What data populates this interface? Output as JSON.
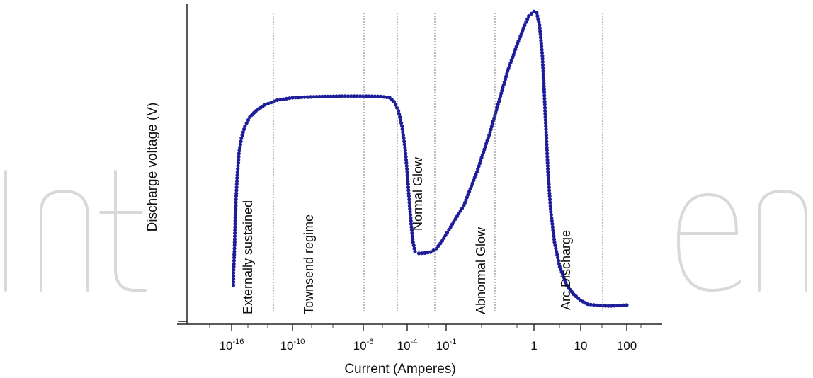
{
  "watermark": {
    "text": "IntechOpen"
  },
  "chart_data": {
    "type": "scatter",
    "title": "",
    "xlabel": "Current  (Amperes)",
    "ylabel": "Discharge voltage (V)",
    "x_scale": "log-like (non-uniform)",
    "y_units": "relative (unlabelled)",
    "ylim": [
      0,
      100
    ],
    "grid": false,
    "legend": "none",
    "marker_color": "#1d1d9a",
    "x_ticks": [
      {
        "label": "10",
        "exp": "-16"
      },
      {
        "label": "10",
        "exp": "-10"
      },
      {
        "label": "10",
        "exp": "-6"
      },
      {
        "label": "10",
        "exp": "-4"
      },
      {
        "label": "10",
        "exp": "-1"
      },
      {
        "label": "1",
        "exp": ""
      },
      {
        "label": "10",
        "exp": ""
      },
      {
        "label": "100",
        "exp": ""
      }
    ],
    "regions": [
      {
        "name": "Externally sustained"
      },
      {
        "name": "Townsend regime"
      },
      {
        "name": "Normal Glow"
      },
      {
        "name": "Abnormal Glow"
      },
      {
        "name": "Arc Discharge"
      }
    ],
    "series": [
      {
        "points_x_tick_units": [
          [
            0.03,
            10
          ],
          [
            0.03,
            14
          ],
          [
            0.04,
            18
          ],
          [
            0.05,
            24
          ],
          [
            0.06,
            31
          ],
          [
            0.07,
            37
          ],
          [
            0.09,
            45
          ],
          [
            0.12,
            53
          ],
          [
            0.16,
            58
          ],
          [
            0.22,
            62
          ],
          [
            0.3,
            65
          ],
          [
            0.4,
            67
          ],
          [
            0.55,
            69
          ],
          [
            0.75,
            70.5
          ],
          [
            1.0,
            71.3
          ],
          [
            1.3,
            71.6
          ],
          [
            1.7,
            71.8
          ],
          [
            2.0,
            71.8
          ],
          [
            2.4,
            71.7
          ],
          [
            2.6,
            71.3
          ],
          [
            2.7,
            70
          ],
          [
            2.8,
            67
          ],
          [
            2.88,
            62
          ],
          [
            2.95,
            55
          ],
          [
            3.0,
            47
          ],
          [
            3.05,
            38
          ],
          [
            3.1,
            30
          ],
          [
            3.15,
            24
          ],
          [
            3.2,
            21
          ],
          [
            3.3,
            20.4
          ],
          [
            3.45,
            20.5
          ],
          [
            3.6,
            20.8
          ],
          [
            3.75,
            22
          ],
          [
            3.9,
            24.5
          ],
          [
            4.05,
            29
          ],
          [
            4.2,
            36
          ],
          [
            4.35,
            47
          ],
          [
            4.5,
            60
          ],
          [
            4.6,
            70
          ],
          [
            4.7,
            80
          ],
          [
            4.8,
            88
          ],
          [
            4.88,
            94
          ],
          [
            4.94,
            98
          ],
          [
            5.0,
            99.5
          ],
          [
            5.06,
            99
          ],
          [
            5.12,
            95
          ],
          [
            5.18,
            85
          ],
          [
            5.22,
            73
          ],
          [
            5.26,
            60
          ],
          [
            5.3,
            47
          ],
          [
            5.36,
            34
          ],
          [
            5.44,
            24
          ],
          [
            5.55,
            16
          ],
          [
            5.7,
            10
          ],
          [
            5.85,
            7
          ],
          [
            6.0,
            5
          ],
          [
            6.15,
            3.8
          ],
          [
            6.35,
            3.4
          ],
          [
            6.6,
            3.2
          ],
          [
            6.8,
            3.3
          ],
          [
            7.0,
            3.5
          ]
        ]
      }
    ]
  }
}
